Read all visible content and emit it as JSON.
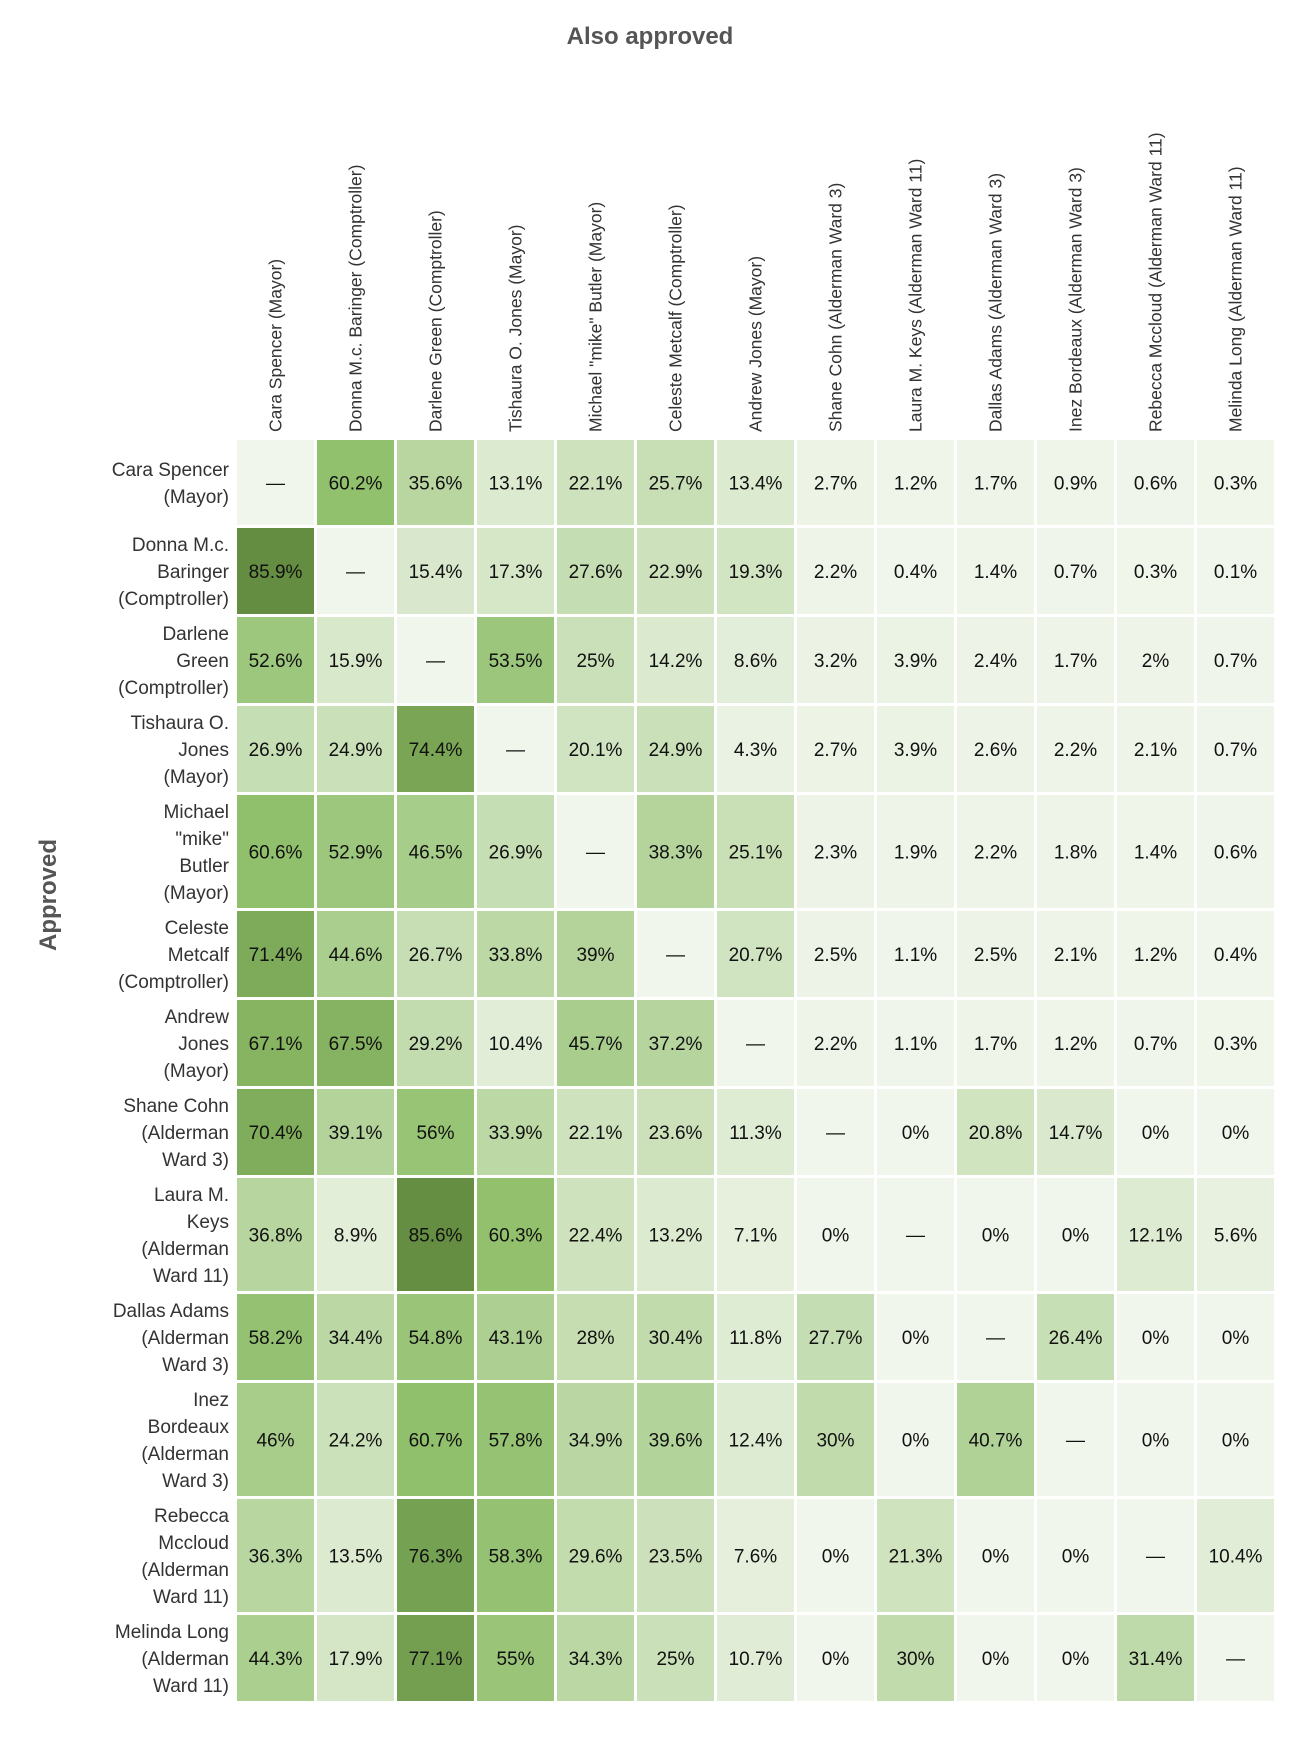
{
  "chart_data": {
    "type": "heatmap",
    "col_title": "Also approved",
    "row_title": "Approved",
    "columns": [
      "Cara Spencer (Mayor)",
      "Donna M.c. Baringer (Comptroller)",
      "Darlene Green (Comptroller)",
      "Tishaura O. Jones (Mayor)",
      "Michael \"mike\" Butler (Mayor)",
      "Celeste Metcalf (Comptroller)",
      "Andrew Jones (Mayor)",
      "Shane Cohn (Alderman Ward 3)",
      "Laura M. Keys (Alderman Ward 11)",
      "Dallas Adams (Alderman Ward 3)",
      "Inez Bordeaux (Alderman Ward 3)",
      "Rebecca Mccloud (Alderman Ward 11)",
      "Melinda Long (Alderman Ward 11)"
    ],
    "rows": [
      {
        "label_lines": [
          "Cara Spencer",
          "(Mayor)"
        ],
        "cells": [
          "—",
          "60.2%",
          "35.6%",
          "13.1%",
          "22.1%",
          "25.7%",
          "13.4%",
          "2.7%",
          "1.2%",
          "1.7%",
          "0.9%",
          "0.6%",
          "0.3%"
        ]
      },
      {
        "label_lines": [
          "Donna M.c.",
          "Baringer",
          "(Comptroller)"
        ],
        "cells": [
          "85.9%",
          "—",
          "15.4%",
          "17.3%",
          "27.6%",
          "22.9%",
          "19.3%",
          "2.2%",
          "0.4%",
          "1.4%",
          "0.7%",
          "0.3%",
          "0.1%"
        ]
      },
      {
        "label_lines": [
          "Darlene",
          "Green",
          "(Comptroller)"
        ],
        "cells": [
          "52.6%",
          "15.9%",
          "—",
          "53.5%",
          "25%",
          "14.2%",
          "8.6%",
          "3.2%",
          "3.9%",
          "2.4%",
          "1.7%",
          "2%",
          "0.7%"
        ]
      },
      {
        "label_lines": [
          "Tishaura O.",
          "Jones",
          "(Mayor)"
        ],
        "cells": [
          "26.9%",
          "24.9%",
          "74.4%",
          "—",
          "20.1%",
          "24.9%",
          "4.3%",
          "2.7%",
          "3.9%",
          "2.6%",
          "2.2%",
          "2.1%",
          "0.7%"
        ]
      },
      {
        "label_lines": [
          "Michael",
          "\"mike\"",
          "Butler",
          "(Mayor)"
        ],
        "cells": [
          "60.6%",
          "52.9%",
          "46.5%",
          "26.9%",
          "—",
          "38.3%",
          "25.1%",
          "2.3%",
          "1.9%",
          "2.2%",
          "1.8%",
          "1.4%",
          "0.6%"
        ]
      },
      {
        "label_lines": [
          "Celeste",
          "Metcalf",
          "(Comptroller)"
        ],
        "cells": [
          "71.4%",
          "44.6%",
          "26.7%",
          "33.8%",
          "39%",
          "—",
          "20.7%",
          "2.5%",
          "1.1%",
          "2.5%",
          "2.1%",
          "1.2%",
          "0.4%"
        ]
      },
      {
        "label_lines": [
          "Andrew",
          "Jones",
          "(Mayor)"
        ],
        "cells": [
          "67.1%",
          "67.5%",
          "29.2%",
          "10.4%",
          "45.7%",
          "37.2%",
          "—",
          "2.2%",
          "1.1%",
          "1.7%",
          "1.2%",
          "0.7%",
          "0.3%"
        ]
      },
      {
        "label_lines": [
          "Shane Cohn",
          "(Alderman",
          "Ward 3)"
        ],
        "cells": [
          "70.4%",
          "39.1%",
          "56%",
          "33.9%",
          "22.1%",
          "23.6%",
          "11.3%",
          "—",
          "0%",
          "20.8%",
          "14.7%",
          "0%",
          "0%"
        ]
      },
      {
        "label_lines": [
          "Laura M.",
          "Keys",
          "(Alderman",
          "Ward 11)"
        ],
        "cells": [
          "36.8%",
          "8.9%",
          "85.6%",
          "60.3%",
          "22.4%",
          "13.2%",
          "7.1%",
          "0%",
          "—",
          "0%",
          "0%",
          "12.1%",
          "5.6%"
        ]
      },
      {
        "label_lines": [
          "Dallas Adams",
          "(Alderman",
          "Ward 3)"
        ],
        "cells": [
          "58.2%",
          "34.4%",
          "54.8%",
          "43.1%",
          "28%",
          "30.4%",
          "11.8%",
          "27.7%",
          "0%",
          "—",
          "26.4%",
          "0%",
          "0%"
        ]
      },
      {
        "label_lines": [
          "Inez",
          "Bordeaux",
          "(Alderman",
          "Ward 3)"
        ],
        "cells": [
          "46%",
          "24.2%",
          "60.7%",
          "57.8%",
          "34.9%",
          "39.6%",
          "12.4%",
          "30%",
          "0%",
          "40.7%",
          "—",
          "0%",
          "0%"
        ]
      },
      {
        "label_lines": [
          "Rebecca",
          "Mccloud",
          "(Alderman",
          "Ward 11)"
        ],
        "cells": [
          "36.3%",
          "13.5%",
          "76.3%",
          "58.3%",
          "29.6%",
          "23.5%",
          "7.6%",
          "0%",
          "21.3%",
          "0%",
          "0%",
          "—",
          "10.4%"
        ]
      },
      {
        "label_lines": [
          "Melinda Long",
          "(Alderman",
          "Ward 11)"
        ],
        "cells": [
          "44.3%",
          "17.9%",
          "77.1%",
          "55%",
          "34.3%",
          "25%",
          "10.7%",
          "0%",
          "30%",
          "0%",
          "0%",
          "31.4%",
          "—"
        ]
      }
    ],
    "color_scale": {
      "low": "#f1f6ec",
      "mid": "#8fbf6a",
      "high": "#648d42",
      "domain_max": 86
    }
  }
}
